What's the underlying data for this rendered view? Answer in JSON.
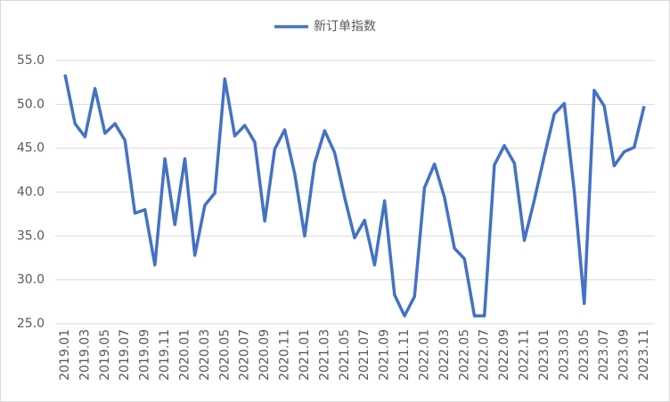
{
  "chart_data": {
    "type": "line",
    "categories": [
      "2019.01",
      null,
      "2019.03",
      null,
      "2019.05",
      null,
      "2019.07",
      null,
      "2019.09",
      null,
      "2019.11",
      null,
      "2020.01",
      null,
      "2020.03",
      null,
      "2020.05",
      null,
      "2020.07",
      null,
      "2020.09",
      null,
      "2020.11",
      null,
      "2021.01",
      null,
      "2021.03",
      null,
      "2021.05",
      null,
      "2021.07",
      null,
      "2021.09",
      null,
      "2021.11",
      null,
      "2022.01",
      null,
      "2022.03",
      null,
      "2022.05",
      null,
      "2022.07",
      null,
      "2022.09",
      null,
      "2022.11",
      null,
      "2023.01",
      null,
      "2023.03",
      null,
      "2023.05",
      null,
      "2023.07",
      null,
      "2023.09",
      null,
      "2023.11"
    ],
    "series": [
      {
        "name": "新订单指数",
        "color": "#4472c4",
        "values": [
          53.4,
          47.8,
          46.3,
          51.8,
          46.7,
          47.8,
          45.9,
          37.6,
          38.0,
          31.7,
          43.8,
          36.3,
          43.8,
          32.8,
          38.5,
          39.9,
          52.9,
          46.4,
          47.6,
          45.7,
          36.7,
          44.9,
          47.1,
          42.1,
          35.0,
          43.3,
          47.0,
          44.5,
          39.4,
          34.8,
          36.8,
          31.7,
          39.0,
          28.3,
          25.9,
          28.1,
          40.5,
          43.2,
          39.4,
          33.6,
          32.4,
          25.9,
          25.9,
          43.1,
          45.3,
          43.3,
          34.5,
          39.1,
          44.1,
          48.9,
          50.1,
          40.1,
          27.3,
          51.6,
          49.8,
          43.0,
          44.6,
          45.1,
          49.8
        ]
      }
    ],
    "ylim": [
      25,
      55
    ],
    "yticks": [
      {
        "value": 25,
        "label": "25.0"
      },
      {
        "value": 30,
        "label": "30.0"
      },
      {
        "value": 35,
        "label": "35.0"
      },
      {
        "value": 40,
        "label": "40.0"
      },
      {
        "value": 45,
        "label": "45.0"
      },
      {
        "value": 50,
        "label": "50.0"
      },
      {
        "value": 55,
        "label": "55.0"
      }
    ],
    "grid": true,
    "legend": "top"
  }
}
